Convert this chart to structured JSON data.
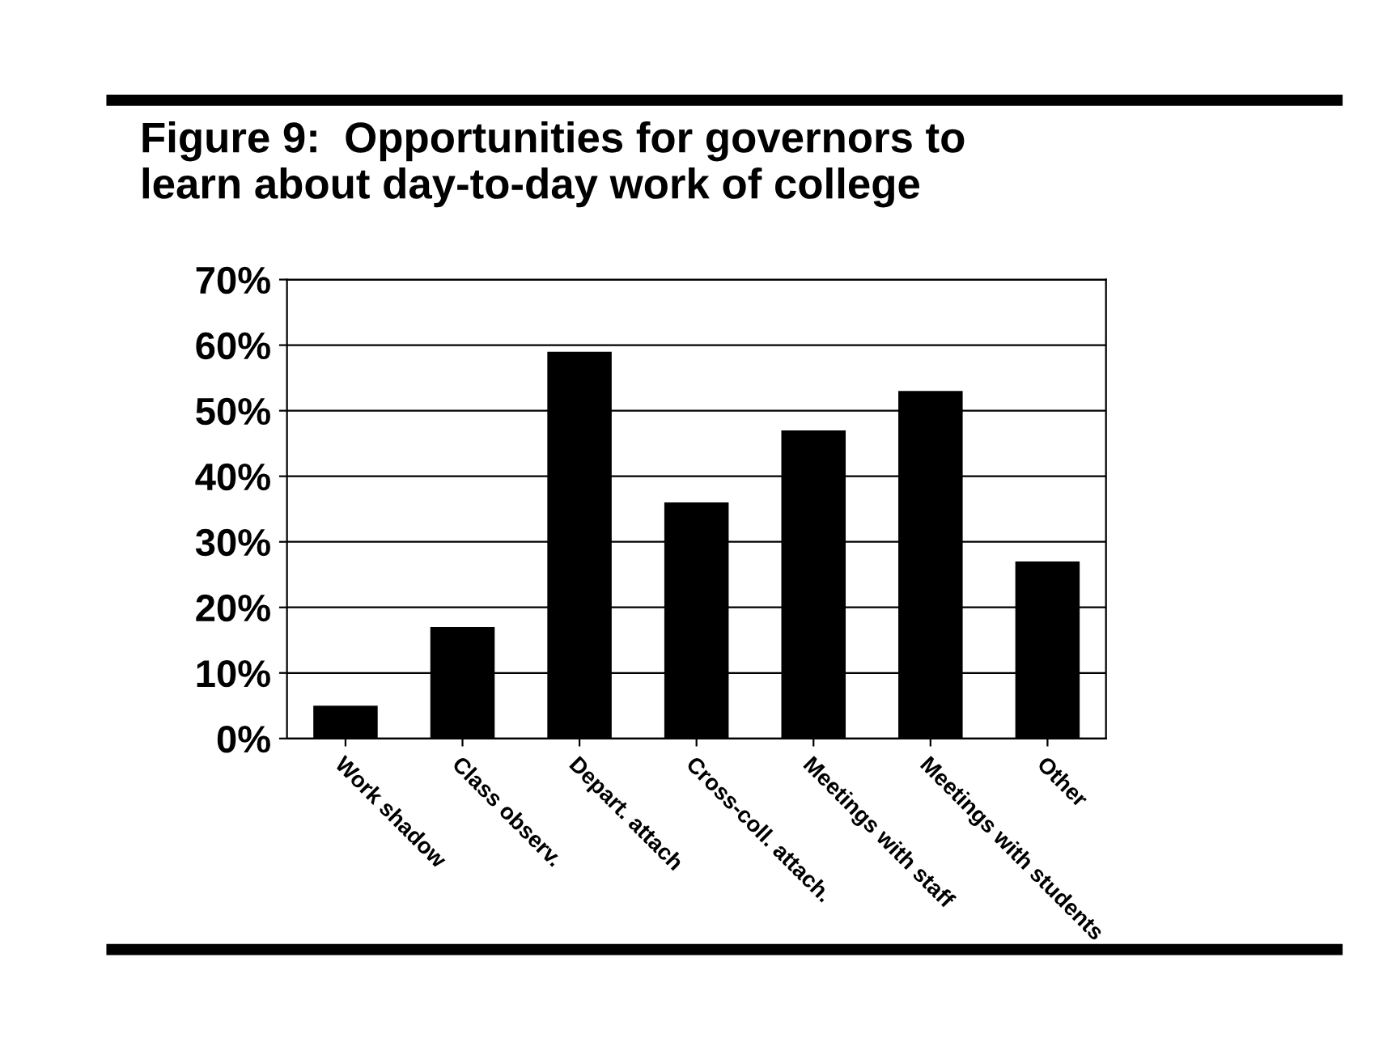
{
  "chart_data": {
    "type": "bar",
    "title": "Figure 9:  Opportunities for governors to\nlearn about day-to-day work of college",
    "categories": [
      "Work shadow",
      "Class observ.",
      "Depart. attach",
      "Cross-coll. attach.",
      "Meetings with staff",
      "Meetings with students",
      "Other"
    ],
    "values": [
      5,
      17,
      59,
      36,
      47,
      53,
      27
    ],
    "color": "#000000",
    "ylim": [
      0,
      70
    ],
    "yticks": [
      {
        "value": 0,
        "label": "0%"
      },
      {
        "value": 10,
        "label": "10%"
      },
      {
        "value": 20,
        "label": "20%"
      },
      {
        "value": 30,
        "label": "30%"
      },
      {
        "value": 40,
        "label": "40%"
      },
      {
        "value": 50,
        "label": "50%"
      },
      {
        "value": 60,
        "label": "60%"
      },
      {
        "value": 70,
        "label": "70%"
      }
    ],
    "grid": "y"
  }
}
